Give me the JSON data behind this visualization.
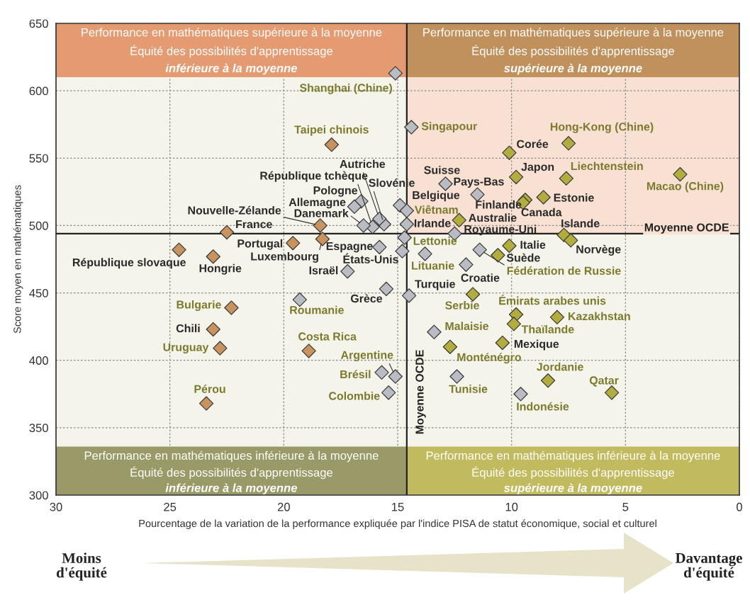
{
  "chart_data": {
    "type": "scatter",
    "xlabel": "Pourcentage de la variation de la performance expliquée par l'indice PISA de statut économique, social et culturel",
    "ylabel": "Score moyen en mathématiques",
    "xlim": [
      30,
      0
    ],
    "xticks": [
      30,
      25,
      20,
      15,
      10,
      5,
      0
    ],
    "ylim": [
      300,
      650
    ],
    "yticks": [
      300,
      350,
      400,
      450,
      500,
      550,
      600,
      650
    ],
    "grid": true,
    "marker": "diamond",
    "series": [
      {
        "color": "#c9935f",
        "x": [
          17.9,
          18.4,
          22.5,
          19.6,
          18.3,
          24.6,
          23.1,
          22.3,
          23.1,
          22.8,
          18.9,
          23.4
        ],
        "values": [
          560,
          500,
          495,
          487,
          490,
          482,
          477,
          439,
          423,
          409,
          407,
          368
        ]
      },
      {
        "color": "#b9bcc3",
        "x": [
          15.1,
          14.4,
          12.9,
          11.5,
          14.9,
          14.6,
          14.6,
          15.6,
          15.8,
          16.1,
          16.5,
          16.6,
          16.9,
          15.8,
          14.8,
          14.7,
          17.2,
          12.5,
          13.8,
          12.0,
          11.4,
          15.5,
          14.5,
          19.3,
          15.1,
          15.7,
          15.4,
          13.4,
          12.4,
          9.6
        ],
        "values": [
          613,
          573,
          531,
          523,
          515,
          511,
          501,
          501,
          505,
          499,
          500,
          518,
          514,
          484,
          481,
          491,
          466,
          494,
          479,
          471,
          482,
          453,
          448,
          445,
          388,
          391,
          376,
          421,
          388,
          375
        ]
      },
      {
        "color": "#b3ad3f",
        "x": [
          7.5,
          10.1,
          9.8,
          7.6,
          2.6,
          9.4,
          9.5,
          8.6,
          12.3,
          7.7,
          7.4,
          10.1,
          10.6,
          11.7,
          9.8,
          9.9,
          8.0,
          10.4,
          12.7,
          8.4,
          5.6
        ],
        "values": [
          561,
          554,
          536,
          535,
          538,
          519,
          517,
          521,
          504,
          493,
          489,
          485,
          478,
          449,
          434,
          427,
          432,
          413,
          410,
          385,
          376
        ]
      }
    ],
    "ref_lines": [
      {
        "axis": "x",
        "value": 14.6,
        "label": "Moyenne OCDE"
      },
      {
        "axis": "y",
        "value": 494,
        "label": "Moyenne OCDE"
      }
    ],
    "annotations": [
      {
        "text": "Taipei chinois",
        "x": 17.9,
        "y": 560
      },
      {
        "text": "Nouvelle-Zélande",
        "x": 18.4,
        "y": 500
      },
      {
        "text": "France",
        "x": 22.5,
        "y": 495
      },
      {
        "text": "Portugal",
        "x": 19.6,
        "y": 487
      },
      {
        "text": "Luxembourg",
        "x": 18.3,
        "y": 490
      },
      {
        "text": "République slovaque",
        "x": 24.6,
        "y": 482
      },
      {
        "text": "Hongrie",
        "x": 23.1,
        "y": 477
      },
      {
        "text": "Bulgarie",
        "x": 22.3,
        "y": 439
      },
      {
        "text": "Chili",
        "x": 23.1,
        "y": 423
      },
      {
        "text": "Uruguay",
        "x": 22.8,
        "y": 409
      },
      {
        "text": "Costa Rica",
        "x": 18.9,
        "y": 407
      },
      {
        "text": "Pérou",
        "x": 23.4,
        "y": 368
      },
      {
        "text": "Shanghai (Chine)",
        "x": 15.1,
        "y": 613
      },
      {
        "text": "Singapour",
        "x": 14.4,
        "y": 573
      },
      {
        "text": "Suisse",
        "x": 12.9,
        "y": 531
      },
      {
        "text": "Pays-Bas",
        "x": 11.5,
        "y": 523
      },
      {
        "text": "Belgique",
        "x": 14.9,
        "y": 515
      },
      {
        "text": "Viêtnam",
        "x": 14.6,
        "y": 511
      },
      {
        "text": "Irlande",
        "x": 14.6,
        "y": 501
      },
      {
        "text": "Slovénie",
        "x": 15.6,
        "y": 501
      },
      {
        "text": "Autriche",
        "x": 15.8,
        "y": 505
      },
      {
        "text": "République tchèque",
        "x": 16.1,
        "y": 499
      },
      {
        "text": "Danemark",
        "x": 16.5,
        "y": 500
      },
      {
        "text": "Pologne",
        "x": 16.6,
        "y": 518
      },
      {
        "text": "Allemagne",
        "x": 16.9,
        "y": 514
      },
      {
        "text": "Espagne",
        "x": 15.8,
        "y": 484
      },
      {
        "text": "États-Unis",
        "x": 14.8,
        "y": 481
      },
      {
        "text": "Lettonie",
        "x": 14.7,
        "y": 491
      },
      {
        "text": "Israël",
        "x": 17.2,
        "y": 466
      },
      {
        "text": "Royaume-Uni",
        "x": 12.5,
        "y": 494
      },
      {
        "text": "Lituanie",
        "x": 13.8,
        "y": 479
      },
      {
        "text": "Croatie",
        "x": 12.0,
        "y": 471
      },
      {
        "text": "Fédération de Russie",
        "x": 11.4,
        "y": 482
      },
      {
        "text": "Grèce",
        "x": 15.5,
        "y": 453
      },
      {
        "text": "Turquie",
        "x": 14.5,
        "y": 448
      },
      {
        "text": "Roumanie",
        "x": 19.3,
        "y": 445
      },
      {
        "text": "Argentine",
        "x": 15.1,
        "y": 388
      },
      {
        "text": "Brésil",
        "x": 15.7,
        "y": 391
      },
      {
        "text": "Colombie",
        "x": 15.4,
        "y": 376
      },
      {
        "text": "Malaisie",
        "x": 13.4,
        "y": 421
      },
      {
        "text": "Tunisie",
        "x": 12.4,
        "y": 388
      },
      {
        "text": "Indonésie",
        "x": 9.6,
        "y": 375
      },
      {
        "text": "Hong-Kong (Chine)",
        "x": 7.5,
        "y": 561
      },
      {
        "text": "Corée",
        "x": 10.1,
        "y": 554
      },
      {
        "text": "Japon",
        "x": 9.8,
        "y": 536
      },
      {
        "text": "Liechtenstein",
        "x": 7.6,
        "y": 535
      },
      {
        "text": "Macao (Chine)",
        "x": 2.6,
        "y": 538
      },
      {
        "text": "Finlande",
        "x": 9.4,
        "y": 519
      },
      {
        "text": "Canada",
        "x": 9.5,
        "y": 517
      },
      {
        "text": "Estonie",
        "x": 8.6,
        "y": 521
      },
      {
        "text": "Australie",
        "x": 12.3,
        "y": 504
      },
      {
        "text": "Islande",
        "x": 7.7,
        "y": 493
      },
      {
        "text": "Norvège",
        "x": 7.4,
        "y": 489
      },
      {
        "text": "Italie",
        "x": 10.1,
        "y": 485
      },
      {
        "text": "Suède",
        "x": 10.6,
        "y": 478
      },
      {
        "text": "Serbie",
        "x": 11.7,
        "y": 449
      },
      {
        "text": "Émirats arabes unis",
        "x": 9.8,
        "y": 434
      },
      {
        "text": "Thaïlande",
        "x": 9.9,
        "y": 427
      },
      {
        "text": "Kazakhstan",
        "x": 8.0,
        "y": 432
      },
      {
        "text": "Mexique",
        "x": 10.4,
        "y": 413
      },
      {
        "text": "Monténégro",
        "x": 12.7,
        "y": 410
      },
      {
        "text": "Jordanie",
        "x": 8.4,
        "y": 385
      },
      {
        "text": "Qatar",
        "x": 5.6,
        "y": 376
      },
      "Performance en mathématiques supérieure à la moyenne\nÉquité des possibilités d'apprentissage\ninférieure à la moyenne",
      "Performance en mathématiques supérieure à la moyenne\nÉquité des possibilités d'apprentissage\nsupérieure à la moyenne",
      "Performance en mathématiques inférieure à la moyenne\nÉquité des possibilités d'apprentissage\ninférieure à la moyenne",
      "Performance en mathématiques inférieure à la moyenne\nÉquité des possibilités d'apprentissage\nsupérieure à la moyenne",
      "Moins\nd'équité",
      "Davantage\nd'équité"
    ]
  }
}
